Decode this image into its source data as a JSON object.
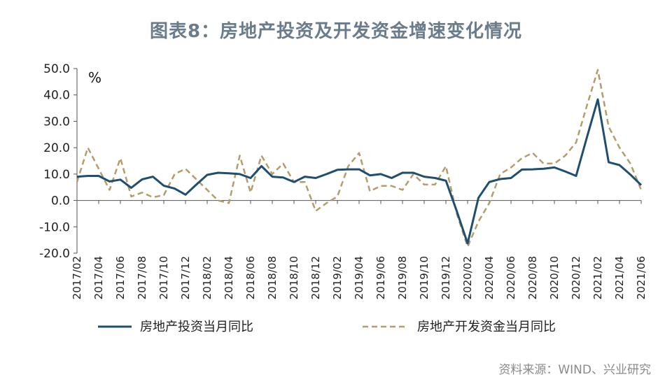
{
  "chart_data": {
    "type": "line",
    "title": "图表8：房地产投资及开发资金增速变化情况",
    "unit_label": "%",
    "ylim": [
      -20,
      50
    ],
    "yticks": [
      "50.0",
      "40.0",
      "30.0",
      "20.0",
      "10.0",
      "0.0",
      "-10.0",
      "-20.0"
    ],
    "ytick_values": [
      50,
      40,
      30,
      20,
      10,
      0,
      -10,
      -20
    ],
    "x": [
      "2017/02",
      "2017/03",
      "2017/04",
      "2017/05",
      "2017/06",
      "2017/07",
      "2017/08",
      "2017/09",
      "2017/10",
      "2017/11",
      "2017/12",
      "2018/01",
      "2018/02",
      "2018/03",
      "2018/04",
      "2018/05",
      "2018/06",
      "2018/07",
      "2018/08",
      "2018/09",
      "2018/10",
      "2018/11",
      "2018/12",
      "2019/01",
      "2019/02",
      "2019/03",
      "2019/04",
      "2019/05",
      "2019/06",
      "2019/07",
      "2019/08",
      "2019/09",
      "2019/10",
      "2019/11",
      "2019/12",
      "2020/01",
      "2020/02",
      "2020/03",
      "2020/04",
      "2020/05",
      "2020/06",
      "2020/07",
      "2020/08",
      "2020/09",
      "2020/10",
      "2020/11",
      "2020/12",
      "2021/01",
      "2021/02",
      "2021/03",
      "2021/04",
      "2021/05",
      "2021/06"
    ],
    "xtick_labels": [
      "2017/02",
      "2017/04",
      "2017/06",
      "2017/08",
      "2017/10",
      "2017/12",
      "2018/02",
      "2018/04",
      "2018/06",
      "2018/08",
      "2018/10",
      "2018/12",
      "2019/02",
      "2019/04",
      "2019/06",
      "2019/08",
      "2019/10",
      "2019/12",
      "2020/02",
      "2020/04",
      "2020/06",
      "2020/08",
      "2020/10",
      "2020/12",
      "2021/02",
      "2021/04",
      "2021/06"
    ],
    "series": [
      {
        "name": "房地产投资当月同比",
        "color": "#1f4e6e",
        "style": "solid",
        "values": [
          9.0,
          9.3,
          9.3,
          7.2,
          7.9,
          4.8,
          8.0,
          9.0,
          5.6,
          4.5,
          2.2,
          6.0,
          9.7,
          10.5,
          10.3,
          10.0,
          8.5,
          13.0,
          9.0,
          8.7,
          7.0,
          9.0,
          8.5,
          10.0,
          11.6,
          11.8,
          11.8,
          9.5,
          10.0,
          8.5,
          10.5,
          10.5,
          9.0,
          8.5,
          7.5,
          -4.0,
          -16.3,
          1.0,
          7.0,
          8.1,
          8.5,
          11.7,
          11.8,
          12.0,
          12.5,
          11.0,
          9.3,
          24.0,
          38.3,
          14.5,
          13.4,
          9.8,
          5.8
        ]
      },
      {
        "name": "房地产开发资金当月同比",
        "color": "#b59d6a",
        "style": "dashed",
        "values": [
          7.0,
          20.0,
          12.0,
          4.0,
          16.0,
          1.5,
          3.0,
          1.2,
          2.0,
          10.0,
          12.0,
          8.0,
          4.0,
          0.0,
          -1.0,
          17.0,
          3.0,
          17.0,
          10.0,
          14.0,
          7.0,
          7.0,
          -4.0,
          -1.0,
          1.5,
          13.0,
          18.0,
          3.5,
          5.5,
          5.5,
          4.0,
          10.0,
          6.0,
          6.0,
          13.0,
          -5.0,
          -17.5,
          -8.0,
          -1.0,
          10.0,
          12.5,
          16.0,
          18.0,
          14.0,
          14.0,
          17.0,
          22.0,
          36.0,
          49.5,
          28.0,
          20.0,
          14.0,
          4.0
        ]
      }
    ],
    "grid": false,
    "legend": "bottom"
  },
  "source": "资料来源：WIND、兴业研究"
}
